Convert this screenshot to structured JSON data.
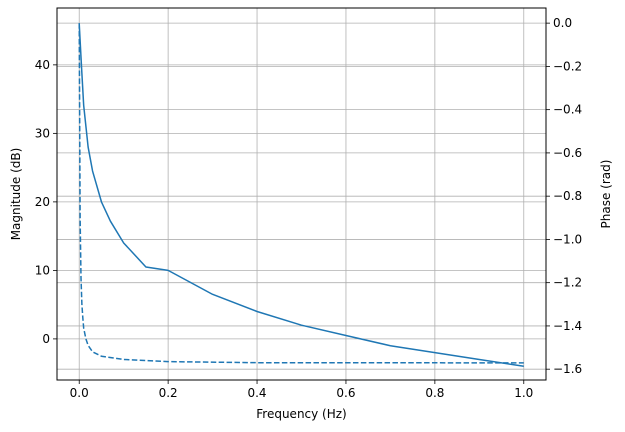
{
  "chart_data": {
    "type": "line",
    "title": "",
    "xlabel": "Frequency (Hz)",
    "ylabel_left": "Magnitude (dB)",
    "ylabel_right": "Phase (rad)",
    "xlim": [
      -0.05,
      1.05
    ],
    "ylim_left": [
      -6.0,
      48.3
    ],
    "ylim_right": [
      -1.65,
      0.07
    ],
    "grid": true,
    "x_ticks": [
      {
        "value": 0.0,
        "label": "0.0"
      },
      {
        "value": 0.2,
        "label": "0.2"
      },
      {
        "value": 0.4,
        "label": "0.4"
      },
      {
        "value": 0.6,
        "label": "0.6"
      },
      {
        "value": 0.8,
        "label": "0.8"
      },
      {
        "value": 1.0,
        "label": "1.0"
      }
    ],
    "y_left_ticks": [
      {
        "value": 0,
        "label": "0"
      },
      {
        "value": 10,
        "label": "10"
      },
      {
        "value": 20,
        "label": "20"
      },
      {
        "value": 30,
        "label": "30"
      },
      {
        "value": 40,
        "label": "40"
      }
    ],
    "y_right_ticks": [
      {
        "value": 0.0,
        "label": "0.0"
      },
      {
        "value": -0.2,
        "label": "−0.2"
      },
      {
        "value": -0.4,
        "label": "−0.4"
      },
      {
        "value": -0.6,
        "label": "−0.6"
      },
      {
        "value": -0.8,
        "label": "−0.8"
      },
      {
        "value": -1.0,
        "label": "−1.0"
      },
      {
        "value": -1.2,
        "label": "−1.2"
      },
      {
        "value": -1.4,
        "label": "−1.4"
      },
      {
        "value": -1.6,
        "label": "−1.6"
      }
    ],
    "series": [
      {
        "axis": "left",
        "style": "solid",
        "color": "#1f77b4",
        "x": [
          0.0,
          0.005,
          0.01,
          0.02,
          0.03,
          0.05,
          0.07,
          0.1,
          0.15,
          0.2,
          0.3,
          0.4,
          0.5,
          0.6,
          0.7,
          0.8,
          0.9,
          1.0
        ],
        "y": [
          46.0,
          39.9,
          34.1,
          28.0,
          24.5,
          20.0,
          17.2,
          14.0,
          10.5,
          10.0,
          6.5,
          4.0,
          2.0,
          0.5,
          -1.0,
          -2.0,
          -3.0,
          -4.0
        ]
      },
      {
        "axis": "right",
        "style": "dashed",
        "color": "#1f77b4",
        "x": [
          0.0,
          0.002,
          0.004,
          0.006,
          0.008,
          0.01,
          0.015,
          0.02,
          0.03,
          0.05,
          0.1,
          0.2,
          0.4,
          0.6,
          0.8,
          1.0
        ],
        "y": [
          0.0,
          -0.9,
          -1.18,
          -1.3,
          -1.36,
          -1.41,
          -1.46,
          -1.49,
          -1.52,
          -1.54,
          -1.555,
          -1.565,
          -1.57,
          -1.57,
          -1.5705,
          -1.5707
        ]
      }
    ]
  }
}
